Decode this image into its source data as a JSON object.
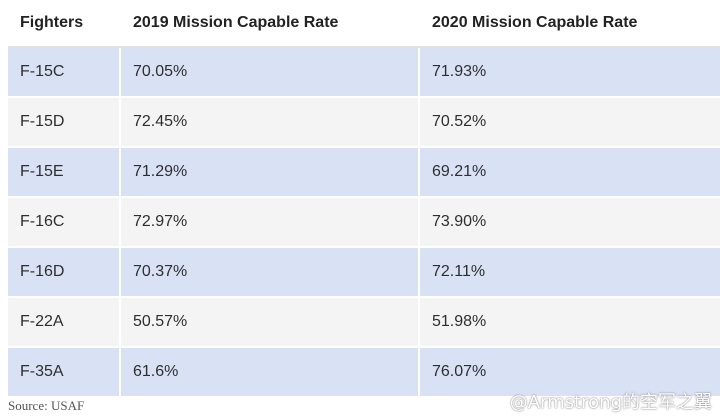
{
  "chart_data": {
    "type": "table",
    "columns": [
      "Fighters",
      "2019 Mission Capable Rate",
      "2020 Mission Capable Rate"
    ],
    "rows": [
      [
        "F-15C",
        "70.05%",
        "71.93%"
      ],
      [
        "F-15D",
        "72.45%",
        "70.52%"
      ],
      [
        "F-15E",
        "71.29%",
        "69.21%"
      ],
      [
        "F-16C",
        "72.97%",
        "73.90%"
      ],
      [
        "F-16D",
        "70.37%",
        "72.11%"
      ],
      [
        "F-22A",
        "50.57%",
        "51.98%"
      ],
      [
        "F-35A",
        "61.6%",
        "76.07%"
      ]
    ]
  },
  "source": "Source: USAF",
  "watermark": "@Armstrong的空军之翼",
  "colors": {
    "odd_row": "#d9e2f5",
    "even_row": "#f4f4f4"
  }
}
